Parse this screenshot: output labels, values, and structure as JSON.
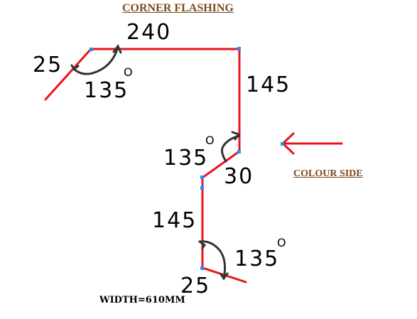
{
  "title": "CORNER  FLASHING",
  "colour_side_label": "COLOUR  SIDE",
  "width_note": "WIDTH=610MM",
  "colors": {
    "flashing": "#e8141c",
    "vertex": "#1e90ff",
    "arc": "#333333",
    "title": "#7b4a1e"
  },
  "dimensions": {
    "top_length": "240",
    "top_hem": "25",
    "top_angle": "135",
    "right_length": "145",
    "middle_angle": "135",
    "middle_length": "30",
    "lower_length": "145",
    "bottom_angle": "135",
    "bottom_hem": "25"
  },
  "degree_mark": "O"
}
